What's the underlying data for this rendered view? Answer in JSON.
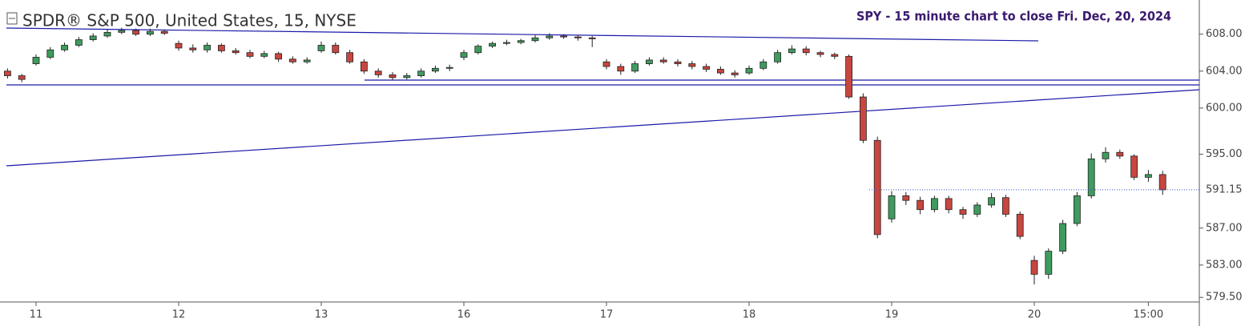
{
  "chart_data": {
    "type": "candlestick",
    "title": "SPDR® S&P 500, United States, 15, NYSE",
    "annotation": "SPY - 15 minute chart to close Fri. Dec, 20, 2024",
    "categories": [
      null,
      null,
      "11",
      null,
      null,
      null,
      null,
      null,
      null,
      null,
      null,
      null,
      "12",
      null,
      null,
      null,
      null,
      null,
      null,
      null,
      null,
      null,
      "13",
      null,
      null,
      null,
      null,
      null,
      null,
      null,
      null,
      null,
      "16",
      null,
      null,
      null,
      null,
      null,
      null,
      null,
      null,
      null,
      "17",
      null,
      null,
      null,
      null,
      null,
      null,
      null,
      null,
      null,
      "18",
      null,
      null,
      null,
      null,
      null,
      null,
      null,
      null,
      null,
      "19",
      null,
      null,
      null,
      null,
      null,
      null,
      null,
      null,
      null,
      "20",
      null,
      null,
      null,
      null,
      null,
      null,
      null,
      "15:00",
      null
    ],
    "open": [
      604.0,
      603.5,
      604.8,
      605.5,
      606.3,
      606.8,
      607.4,
      607.8,
      608.2,
      608.4,
      608.0,
      608.3,
      607.0,
      606.5,
      606.3,
      606.8,
      606.2,
      606.0,
      605.6,
      605.9,
      605.3,
      605.0,
      606.2,
      606.8,
      606.0,
      605.0,
      604.0,
      603.6,
      603.3,
      603.5,
      604.0,
      604.3,
      605.5,
      606.0,
      606.7,
      607.0,
      607.1,
      607.3,
      607.6,
      607.8,
      607.7,
      607.6,
      605.0,
      604.5,
      604.0,
      604.8,
      605.2,
      605.0,
      604.8,
      604.5,
      604.2,
      603.8,
      603.8,
      604.3,
      605.0,
      606.0,
      606.4,
      606.0,
      605.8,
      605.6,
      601.2,
      596.5,
      588.0,
      590.5,
      590.0,
      589.0,
      590.2,
      589.0,
      588.5,
      589.5,
      590.3,
      588.5,
      583.5,
      582.0,
      584.5,
      587.5,
      590.5,
      594.5,
      595.2,
      594.8,
      592.5,
      592.8
    ],
    "high": [
      604.3,
      603.7,
      605.8,
      606.6,
      607.1,
      607.7,
      608.1,
      608.5,
      608.7,
      608.6,
      608.6,
      608.5,
      607.3,
      606.9,
      607.1,
      607.0,
      606.5,
      606.3,
      606.2,
      606.1,
      605.6,
      605.5,
      607.2,
      607.1,
      606.3,
      605.3,
      604.3,
      603.9,
      603.8,
      604.3,
      604.6,
      604.7,
      606.3,
      606.9,
      607.2,
      607.4,
      607.5,
      607.9,
      608.1,
      608.0,
      607.9,
      607.8,
      605.3,
      604.8,
      605.1,
      605.5,
      605.5,
      605.3,
      605.1,
      604.8,
      604.5,
      604.1,
      604.6,
      605.3,
      606.3,
      606.8,
      606.7,
      606.2,
      606.0,
      605.8,
      601.6,
      596.9,
      591.0,
      590.9,
      590.4,
      590.5,
      590.5,
      589.3,
      589.8,
      590.8,
      590.6,
      588.8,
      584.0,
      584.8,
      587.9,
      590.9,
      595.1,
      595.75,
      595.5,
      595.0,
      593.3,
      593.2
    ],
    "low": [
      603.2,
      602.8,
      604.6,
      605.3,
      606.1,
      606.6,
      607.2,
      607.6,
      608.0,
      607.8,
      607.8,
      607.9,
      606.2,
      606.0,
      606.0,
      606.0,
      605.8,
      605.4,
      605.4,
      605.0,
      604.8,
      604.8,
      606.0,
      605.8,
      604.8,
      603.7,
      603.3,
      603.0,
      603.1,
      603.3,
      603.8,
      604.0,
      605.2,
      605.8,
      606.5,
      606.8,
      606.9,
      607.1,
      607.4,
      607.5,
      607.3,
      606.6,
      604.2,
      603.6,
      603.8,
      604.6,
      604.8,
      604.5,
      604.2,
      603.9,
      603.6,
      603.3,
      603.6,
      604.1,
      604.8,
      605.8,
      605.7,
      605.5,
      605.3,
      601.0,
      596.2,
      585.9,
      587.6,
      589.5,
      588.5,
      588.7,
      588.6,
      588.0,
      588.2,
      589.2,
      588.2,
      585.8,
      580.9,
      581.5,
      584.2,
      587.2,
      590.2,
      594.1,
      594.5,
      592.2,
      592.0,
      590.6
    ],
    "close": [
      603.5,
      603.1,
      605.5,
      606.3,
      606.8,
      607.4,
      607.8,
      608.2,
      608.4,
      608.0,
      608.3,
      608.1,
      606.5,
      606.3,
      606.8,
      606.2,
      606.0,
      605.6,
      605.9,
      605.3,
      605.0,
      605.2,
      606.8,
      606.0,
      605.0,
      604.0,
      603.6,
      603.3,
      603.5,
      604.0,
      604.3,
      604.4,
      606.0,
      606.7,
      607.0,
      607.1,
      607.3,
      607.6,
      607.8,
      607.7,
      607.6,
      607.5,
      604.5,
      604.0,
      604.8,
      605.2,
      605.0,
      604.8,
      604.5,
      604.2,
      603.8,
      603.6,
      604.3,
      605.0,
      606.0,
      606.4,
      606.0,
      605.8,
      605.6,
      601.2,
      596.5,
      586.3,
      590.5,
      590.0,
      589.0,
      590.2,
      589.0,
      588.5,
      589.5,
      590.3,
      588.5,
      586.1,
      582.0,
      584.5,
      587.5,
      590.5,
      594.5,
      595.2,
      594.8,
      592.5,
      592.8,
      591.15
    ],
    "up_color": "#3f9b5e",
    "down_color": "#c8463f",
    "ylim": [
      579,
      611.7
    ],
    "yticks": [
      {
        "value": 608,
        "label": "608.00"
      },
      {
        "value": 604,
        "label": "604.00"
      },
      {
        "value": 600,
        "label": "600.00"
      },
      {
        "value": 595,
        "label": "595.00"
      },
      {
        "value": 587,
        "label": "587.00"
      },
      {
        "value": 583,
        "label": "583.00"
      },
      {
        "value": 579.5,
        "label": "579.50"
      }
    ]
  }
}
